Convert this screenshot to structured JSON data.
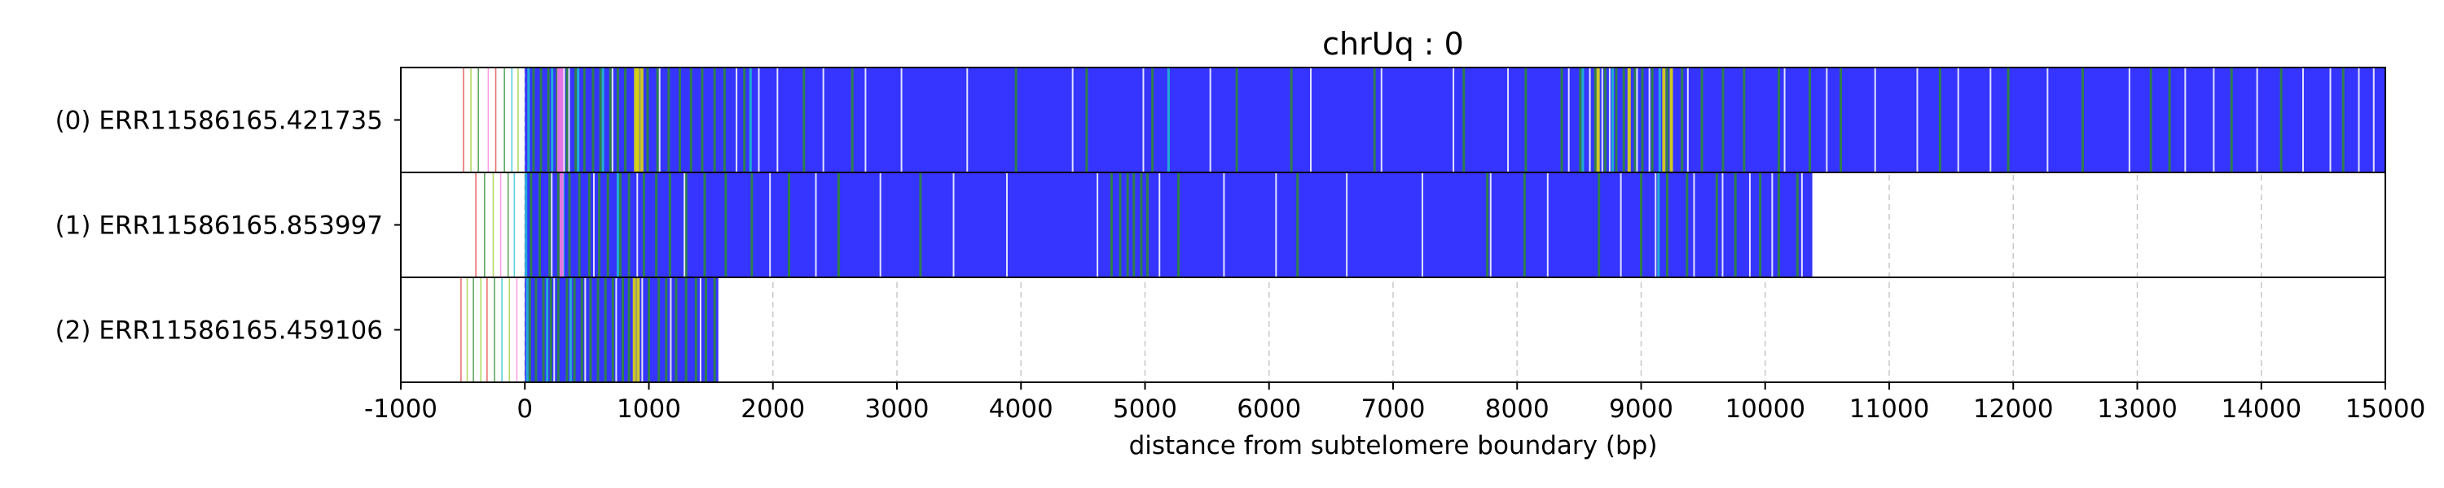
{
  "chart_data": {
    "type": "track",
    "title": "chrUq : 0",
    "xlabel": "distance from subtelomere boundary (bp)",
    "xlim": [
      -1000,
      15000
    ],
    "xticks": [
      -1000,
      0,
      1000,
      2000,
      3000,
      4000,
      5000,
      6000,
      7000,
      8000,
      9000,
      10000,
      11000,
      12000,
      13000,
      14000,
      15000
    ],
    "grid": "vertical dashed at x ticks",
    "colors": {
      "telomere_repeat": "#3535ff",
      "variant_green": "#2e8b2e",
      "variant_cyan": "#20c0d0",
      "variant_yellow": "#e8e000",
      "variant_pink": "#ff7fe0",
      "variant_lime": "#9acd32",
      "variant_red": "#e04040",
      "white_gap": "#ffffff"
    },
    "reads": [
      {
        "label": "(0) ERR11586165.421735",
        "start": -500,
        "end": 15000,
        "fill_start": 0,
        "subtelomere_marks": [
          -500,
          -440,
          -380,
          -300,
          -240,
          -170,
          -110,
          -60
        ],
        "mark_colors": [
          "variant_red",
          "variant_lime",
          "variant_green",
          "variant_pink",
          "variant_red",
          "variant_green",
          "variant_cyan",
          "variant_lime"
        ],
        "green_marks": [
          60,
          120,
          180,
          250,
          330,
          400,
          470,
          540,
          600,
          680,
          740,
          800,
          980,
          1060,
          1150,
          1240,
          1330,
          1420,
          1520,
          1600,
          1760,
          2240,
          2630,
          3950,
          4520,
          5050,
          5730,
          6170,
          6840,
          7560,
          8060,
          8350,
          8500,
          8620,
          8700,
          8790,
          8850,
          8940,
          9000,
          9080,
          9200,
          9320,
          9480,
          9650,
          9820,
          10100,
          10350,
          10600,
          11400,
          11950,
          12550,
          13100,
          13250,
          13750,
          14150,
          14650
        ],
        "cyan_marks": [
          20,
          210,
          420,
          620,
          1810,
          5180,
          8520,
          8760,
          9140
        ],
        "yellow_marks": [
          880,
          900,
          930,
          8640,
          8890,
          9170,
          9230
        ],
        "pink_marks": [
          260,
          290
        ],
        "white_marks": [
          310,
          350,
          700,
          1080,
          1700,
          1880,
          2030,
          2400,
          2740,
          3030,
          3560,
          4410,
          4980,
          5520,
          6330,
          6900,
          7480,
          7920,
          8410,
          8580,
          8680,
          8740,
          8960,
          9060,
          9370,
          10150,
          10490,
          10880,
          11220,
          11550,
          11810,
          12270,
          12930,
          13380,
          13610,
          13960,
          14330,
          14550,
          14780,
          14900
        ]
      },
      {
        "label": "(1) ERR11586165.853997",
        "start": -400,
        "end": 10380,
        "fill_start": 0,
        "subtelomere_marks": [
          -400,
          -330,
          -260,
          -200,
          -140,
          -90
        ],
        "mark_colors": [
          "variant_red",
          "variant_green",
          "variant_lime",
          "variant_pink",
          "variant_green",
          "variant_cyan"
        ],
        "green_marks": [
          40,
          110,
          190,
          260,
          350,
          430,
          510,
          590,
          660,
          760,
          830,
          950,
          1050,
          1160,
          1290,
          1440,
          1610,
          1820,
          2120,
          2520,
          3180,
          4720,
          4790,
          4850,
          4900,
          4960,
          5010,
          5260,
          6220,
          7750,
          8050,
          8650,
          8990,
          9200,
          9360,
          9600,
          9750,
          9950,
          10100,
          10250
        ],
        "cyan_marks": [
          0,
          300,
          740,
          9130
        ],
        "yellow_marks": [],
        "pink_marks": [
          280
        ],
        "white_marks": [
          210,
          550,
          900,
          1280,
          1970,
          2340,
          2860,
          3450,
          3880,
          4610,
          5110,
          5630,
          6050,
          6620,
          7230,
          7780,
          8240,
          8830,
          9110,
          9420,
          9650,
          9870,
          10050,
          10290
        ]
      },
      {
        "label": "(2) ERR11586165.459106",
        "start": -520,
        "end": 1560,
        "fill_start": 0,
        "subtelomere_marks": [
          -520,
          -470,
          -420,
          -360,
          -310,
          -250,
          -190,
          -130,
          -70
        ],
        "mark_colors": [
          "variant_red",
          "variant_lime",
          "variant_green",
          "variant_lime",
          "variant_red",
          "variant_green",
          "variant_cyan",
          "variant_lime",
          "variant_pink"
        ],
        "green_marks": [
          30,
          80,
          140,
          200,
          260,
          330,
          390,
          450,
          520,
          580,
          640,
          700,
          780,
          830,
          990,
          1070,
          1130,
          1210,
          1290,
          1370,
          1450,
          1520
        ],
        "cyan_marks": [
          10,
          170,
          360
        ],
        "yellow_marks": [
          870,
          900
        ],
        "pink_marks": [],
        "white_marks": [
          230,
          480,
          730,
          940,
          1170,
          1410
        ]
      }
    ]
  }
}
